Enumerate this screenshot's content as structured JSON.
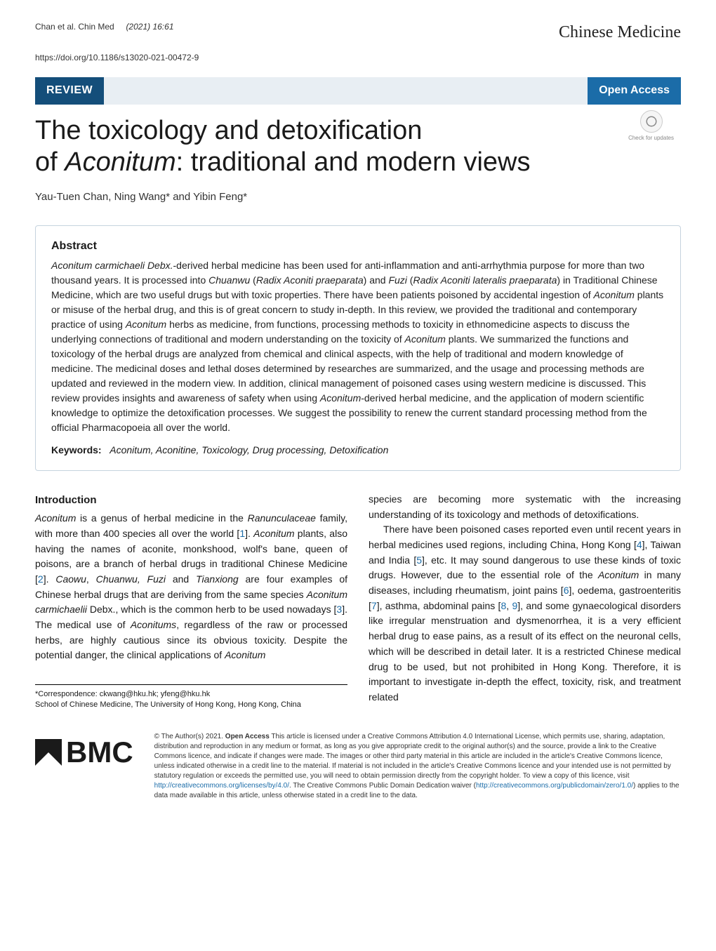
{
  "header": {
    "authors_short": "Chan et al. Chin Med",
    "journal_ref": "(2021) 16:61",
    "doi": "https://doi.org/10.1186/s13020-021-00472-9",
    "journal_name": "Chinese Medicine"
  },
  "banner": {
    "review_label": "REVIEW",
    "open_access_label": "Open Access"
  },
  "crossmark": {
    "label": "Check for updates"
  },
  "title_parts": {
    "line1": "The toxicology and detoxification",
    "line2_pre": "of ",
    "line2_em": "Aconitum",
    "line2_post": ": traditional and modern views"
  },
  "authors": "Yau-Tuen Chan, Ning Wang* and Yibin Feng*",
  "abstract": {
    "heading": "Abstract",
    "text_parts": [
      {
        "em": true,
        "t": "Aconitum carmichaeli Debx."
      },
      {
        "t": "-derived herbal medicine has been used for anti-inflammation and anti-arrhythmia purpose for more than two thousand years. It is processed into "
      },
      {
        "em": true,
        "t": "Chuanwu"
      },
      {
        "t": " ("
      },
      {
        "em": true,
        "t": "Radix Aconiti praeparata"
      },
      {
        "t": ") and "
      },
      {
        "em": true,
        "t": "Fuzi"
      },
      {
        "t": " ("
      },
      {
        "em": true,
        "t": "Radix Aconiti lateralis praeparata"
      },
      {
        "t": ") in Traditional Chinese Medicine, which are two useful drugs but with toxic properties. There have been patients poisoned by accidental ingestion of "
      },
      {
        "em": true,
        "t": "Aconitum"
      },
      {
        "t": " plants or misuse of the herbal drug, and this is of great concern to study in-depth. In this review, we provided the traditional and contemporary practice of using "
      },
      {
        "em": true,
        "t": "Aconitum"
      },
      {
        "t": " herbs as medicine, from functions, processing methods to toxicity in ethnomedicine aspects to discuss the underlying connections of traditional and modern understanding on the toxicity of "
      },
      {
        "em": true,
        "t": "Aconitum"
      },
      {
        "t": " plants. We summarized the functions and toxicology of the herbal drugs are analyzed from chemical and clinical aspects, with the help of traditional and modern knowledge of medicine. The medicinal doses and lethal doses determined by researches are summarized, and the usage and processing methods are updated and reviewed in the modern view. In addition, clinical management of poisoned cases using western medicine is discussed. This review provides insights and awareness of safety when using "
      },
      {
        "em": true,
        "t": "Aconitum"
      },
      {
        "t": "-derived herbal medicine, and the application of modern scientific knowledge to optimize the detoxification processes. We suggest the possibility to renew the current standard processing method from the official Pharmacopoeia all over the world."
      }
    ],
    "keywords_label": "Keywords:",
    "keywords_values": "Aconitum, Aconitine, Toxicology, Drug processing, Detoxification"
  },
  "intro": {
    "heading": "Introduction",
    "col1_parts": [
      {
        "em": true,
        "t": "Aconitum"
      },
      {
        "t": " is a genus of herbal medicine in the "
      },
      {
        "em": true,
        "t": "Ranunculaceae"
      },
      {
        "t": " family, with more than 400 species all over the world ["
      },
      {
        "ref": true,
        "t": "1"
      },
      {
        "t": "]. "
      },
      {
        "em": true,
        "t": "Aconitum"
      },
      {
        "t": " plants, also having the names of aconite, monkshood, wolf's bane, queen of poisons, are a branch of herbal drugs in traditional Chinese Medicine ["
      },
      {
        "ref": true,
        "t": "2"
      },
      {
        "t": "]. "
      },
      {
        "em": true,
        "t": "Caowu"
      },
      {
        "t": ", "
      },
      {
        "em": true,
        "t": "Chuanwu, Fuzi"
      },
      {
        "t": " and "
      },
      {
        "em": true,
        "t": "Tianxiong"
      },
      {
        "t": " are four examples of Chinese herbal drugs that are deriving from the same species "
      },
      {
        "em": true,
        "t": "Aconitum carmichaelii"
      },
      {
        "t": " Debx., which is the common herb to be used nowadays ["
      },
      {
        "ref": true,
        "t": "3"
      },
      {
        "t": "]. The medical use of "
      },
      {
        "em": true,
        "t": "Aconitums"
      },
      {
        "t": ", regardless of the raw or processed herbs, are highly cautious since its obvious toxicity. Despite the potential danger, the clinical applications of "
      },
      {
        "em": true,
        "t": "Aconitum"
      }
    ],
    "col2_top": "species are becoming more systematic with the increasing understanding of its toxicology and methods of detoxifications.",
    "col2_parts": [
      {
        "t": "There have been poisoned cases reported even until recent years in herbal medicines used regions, including China, Hong Kong ["
      },
      {
        "ref": true,
        "t": "4"
      },
      {
        "t": "], Taiwan and India ["
      },
      {
        "ref": true,
        "t": "5"
      },
      {
        "t": "], etc. It may sound dangerous to use these kinds of toxic drugs. However, due to the essential role of the "
      },
      {
        "em": true,
        "t": "Aconitum"
      },
      {
        "t": " in many diseases, including rheumatism, joint pains ["
      },
      {
        "ref": true,
        "t": "6"
      },
      {
        "t": "], oedema, gastroenteritis ["
      },
      {
        "ref": true,
        "t": "7"
      },
      {
        "t": "], asthma, abdominal pains ["
      },
      {
        "ref": true,
        "t": "8"
      },
      {
        "t": ", "
      },
      {
        "ref": true,
        "t": "9"
      },
      {
        "t": "], and some gynaecological disorders like irregular menstruation and dysmenorrhea, it is a very efficient herbal drug to ease pains, as a result of its effect on the neuronal cells, which will be described in detail later. It is a restricted Chinese medical drug to be used, but not prohibited in Hong Kong. Therefore, it is important to investigate in-depth the effect, toxicity, risk, and treatment related"
      }
    ]
  },
  "correspondence": {
    "line1": "*Correspondence: ckwang@hku.hk; yfeng@hku.hk",
    "line2": "School of Chinese Medicine, The University of Hong Kong, Hong Kong, China"
  },
  "footer": {
    "bmc_text": "BMC",
    "license_prefix": "© The Author(s) 2021. ",
    "oa_label": "Open Access",
    "license_body": " This article is licensed under a Creative Commons Attribution 4.0 International License, which permits use, sharing, adaptation, distribution and reproduction in any medium or format, as long as you give appropriate credit to the original author(s) and the source, provide a link to the Creative Commons licence, and indicate if changes were made. The images or other third party material in this article are included in the article's Creative Commons licence, unless indicated otherwise in a credit line to the material. If material is not included in the article's Creative Commons licence and your intended use is not permitted by statutory regulation or exceeds the permitted use, you will need to obtain permission directly from the copyright holder. To view a copy of this licence, visit ",
    "license_link1": "http://creativecommons.org/licenses/by/4.0/",
    "license_mid": ". The Creative Commons Public Domain Dedication waiver (",
    "license_link2": "http://creativecommons.org/publicdomain/zero/1.0/",
    "license_end": ") applies to the data made available in this article, unless otherwise stated in a credit line to the data."
  },
  "colors": {
    "banner_review_bg": "#144e7a",
    "banner_oa_bg": "#1b6ca8",
    "banner_mid_bg": "#e8eef3",
    "link_color": "#1b6ca8",
    "abstract_border": "#c5d3de"
  }
}
